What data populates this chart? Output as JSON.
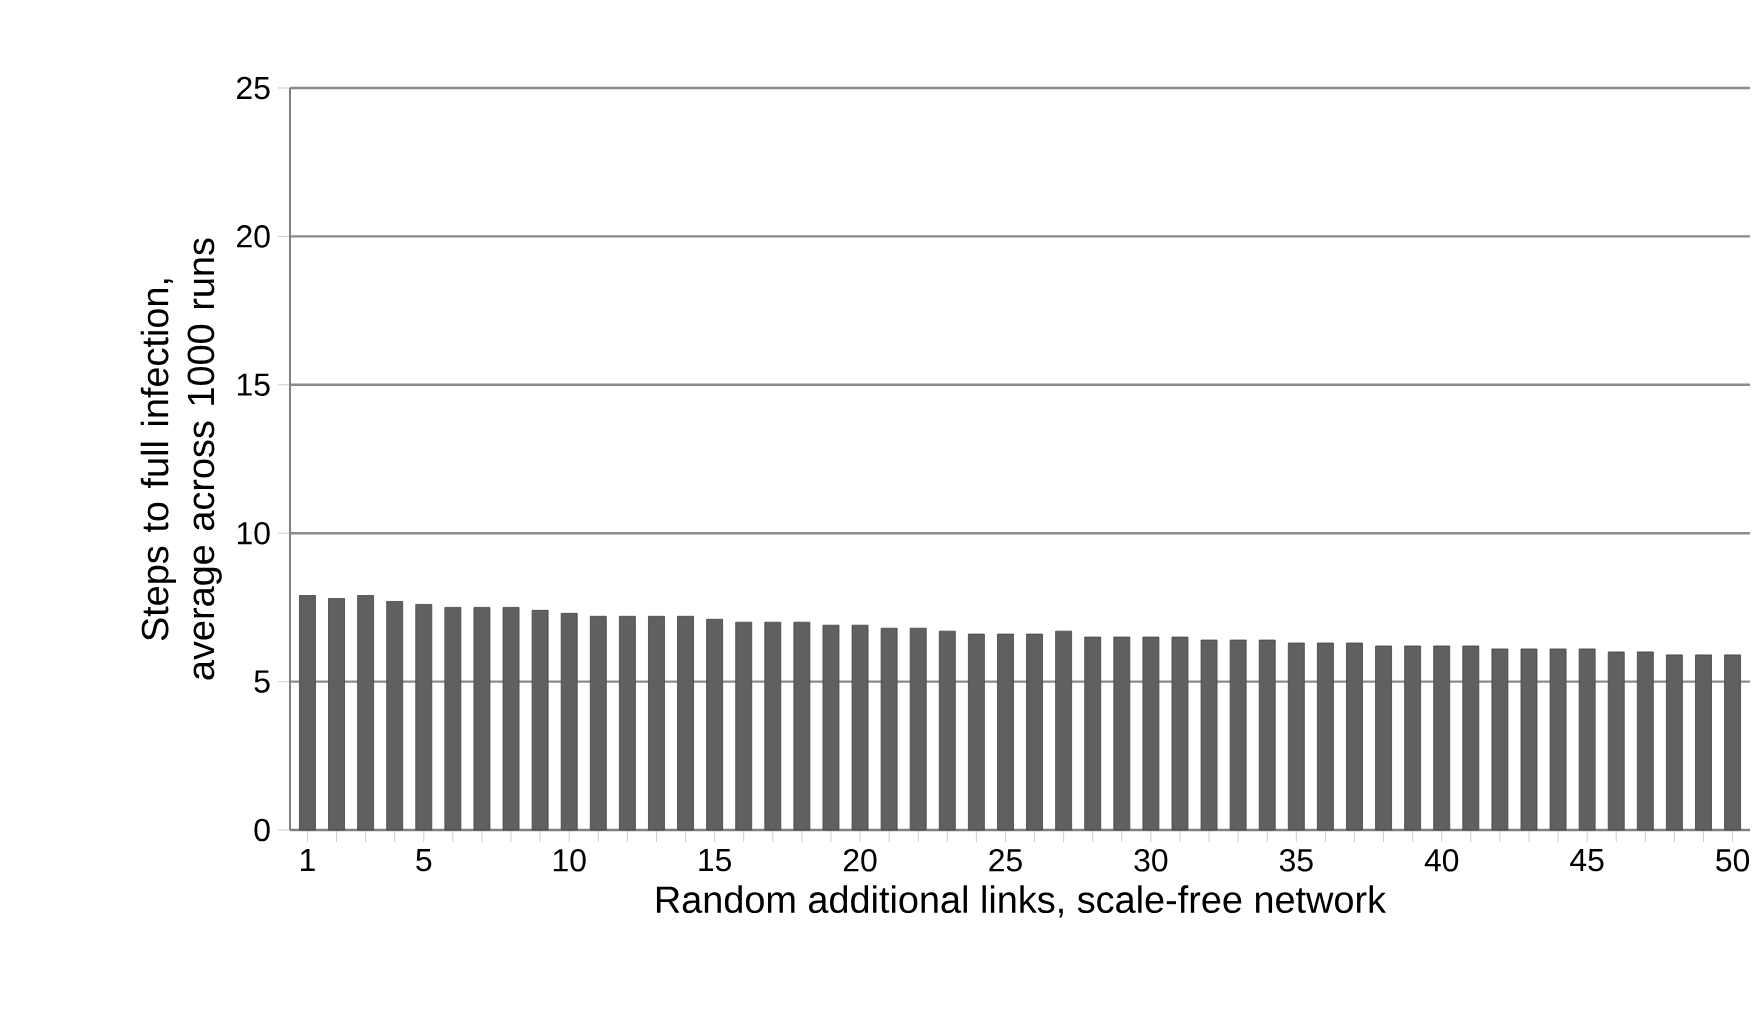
{
  "chart_data": {
    "type": "bar",
    "xlabel": "Random additional links, scale-free network",
    "ylabel": "Steps to full infection, average across 1000 runs",
    "categories": [
      "1",
      null,
      null,
      null,
      "5",
      null,
      null,
      null,
      null,
      "10",
      null,
      null,
      null,
      null,
      "15",
      null,
      null,
      null,
      null,
      "20",
      null,
      null,
      null,
      null,
      "25",
      null,
      null,
      null,
      null,
      "30",
      null,
      null,
      null,
      null,
      "35",
      null,
      null,
      null,
      null,
      "40",
      null,
      null,
      null,
      null,
      "45",
      null,
      null,
      null,
      null,
      "50"
    ],
    "values": [
      7.9,
      7.8,
      7.9,
      7.7,
      7.6,
      7.5,
      7.5,
      7.5,
      7.4,
      7.3,
      7.2,
      7.2,
      7.2,
      7.2,
      7.1,
      7.0,
      7.0,
      7.0,
      6.9,
      6.9,
      6.8,
      6.8,
      6.7,
      6.6,
      6.6,
      6.6,
      6.7,
      6.5,
      6.5,
      6.5,
      6.5,
      6.4,
      6.4,
      6.4,
      6.3,
      6.3,
      6.3,
      6.2,
      6.2,
      6.2,
      6.2,
      6.1,
      6.1,
      6.1,
      6.1,
      6.0,
      6.0,
      5.9,
      5.9,
      5.9
    ],
    "color": "#606060",
    "ylim": [
      0,
      25
    ],
    "yticks": [
      0,
      5,
      10,
      15,
      20,
      25
    ],
    "grid": "y"
  }
}
